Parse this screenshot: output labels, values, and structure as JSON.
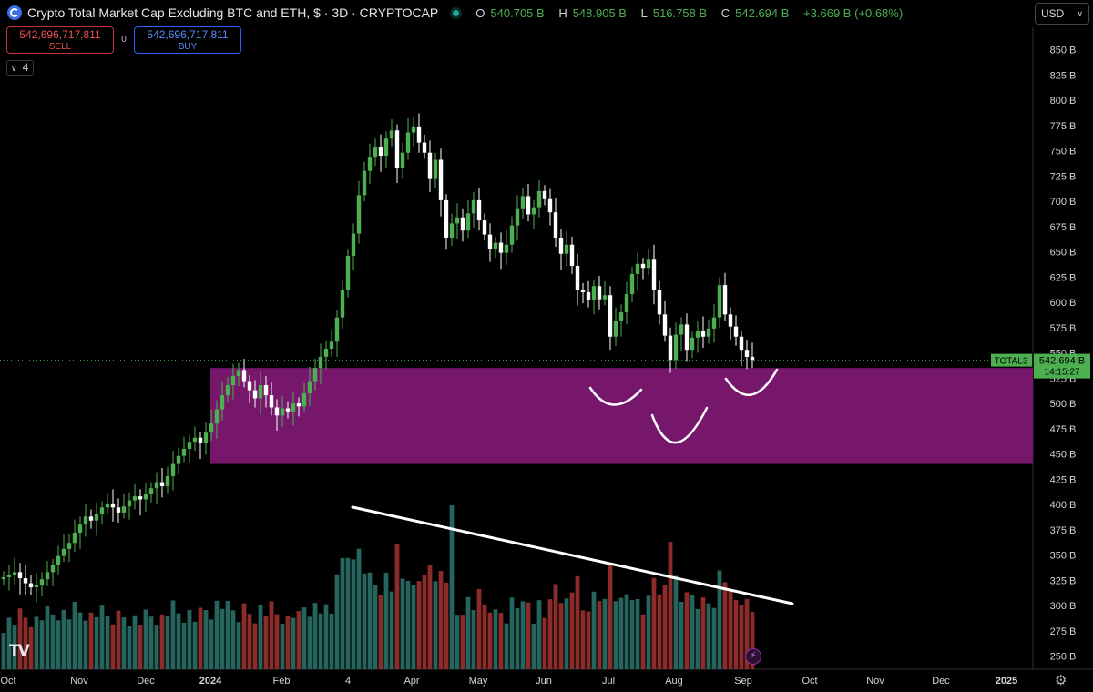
{
  "header": {
    "title": "Crypto Total Market Cap Excluding BTC and ETH, $ · 3D · CRYPTOCAP",
    "ohlc": [
      {
        "k": "O",
        "v": "540.705 B"
      },
      {
        "k": "H",
        "v": "548.905 B"
      },
      {
        "k": "L",
        "v": "516.758 B"
      },
      {
        "k": "C",
        "v": "542.694 B"
      }
    ],
    "change": "+3.669 B (+0.68%)"
  },
  "trade": {
    "sell_price": "542,696,717,811",
    "sell_label": "SELL",
    "spread": "0",
    "buy_price": "542,696,717,811",
    "buy_label": "BUY"
  },
  "indicator_toggle": "4",
  "currency": "USD",
  "price_tag": {
    "symbol": "TOTAL3",
    "value": "542.694 B",
    "countdown": "14:15:27"
  },
  "tv_logo": "TV",
  "colors": {
    "up": "#4caf50",
    "down": "#ffffff",
    "vol_up": "#26645e",
    "vol_down": "#8b2c2b",
    "zone": "#76176b",
    "axis_text": "#d1d4dc",
    "tag": "#4caf50"
  },
  "chart_data": {
    "type": "candlestick",
    "y_axis_unit": "B",
    "y_ticks": [
      250,
      275,
      300,
      325,
      350,
      375,
      400,
      425,
      450,
      475,
      500,
      525,
      550,
      575,
      600,
      625,
      650,
      675,
      700,
      725,
      750,
      775,
      800,
      825,
      850
    ],
    "x_ticks": [
      "Oct",
      "Nov",
      "Dec",
      "2024",
      "Feb",
      "4",
      "Apr",
      "May",
      "Jun",
      "Jul",
      "Aug",
      "Sep",
      "Oct",
      "Nov",
      "Dec",
      "2025"
    ],
    "last_price": 542.694,
    "support_zone": {
      "low": 440,
      "high": 535
    },
    "closes": [
      328,
      330,
      333,
      327,
      322,
      318,
      320,
      326,
      333,
      340,
      349,
      356,
      362,
      372,
      380,
      388,
      384,
      391,
      397,
      401,
      397,
      392,
      398,
      404,
      408,
      405,
      410,
      416,
      422,
      418,
      428,
      440,
      448,
      455,
      462,
      466,
      461,
      471,
      480,
      494,
      508,
      518,
      527,
      533,
      522,
      513,
      505,
      518,
      508,
      496,
      488,
      495,
      492,
      500,
      497,
      510,
      522,
      535,
      546,
      554,
      561,
      585,
      612,
      646,
      668,
      706,
      730,
      744,
      754,
      745,
      762,
      770,
      733,
      748,
      768,
      774,
      758,
      748,
      722,
      741,
      701,
      664,
      678,
      684,
      671,
      688,
      701,
      681,
      667,
      653,
      659,
      649,
      657,
      676,
      693,
      705,
      687,
      694,
      710,
      702,
      689,
      664,
      648,
      657,
      636,
      612,
      610,
      602,
      616,
      603,
      607,
      566,
      582,
      590,
      608,
      628,
      638,
      634,
      643,
      612,
      588,
      567,
      543,
      568,
      578,
      553,
      565,
      572,
      566,
      574,
      585,
      617,
      588,
      576,
      566,
      553,
      546,
      543
    ],
    "volume_ticks_visible": true
  }
}
